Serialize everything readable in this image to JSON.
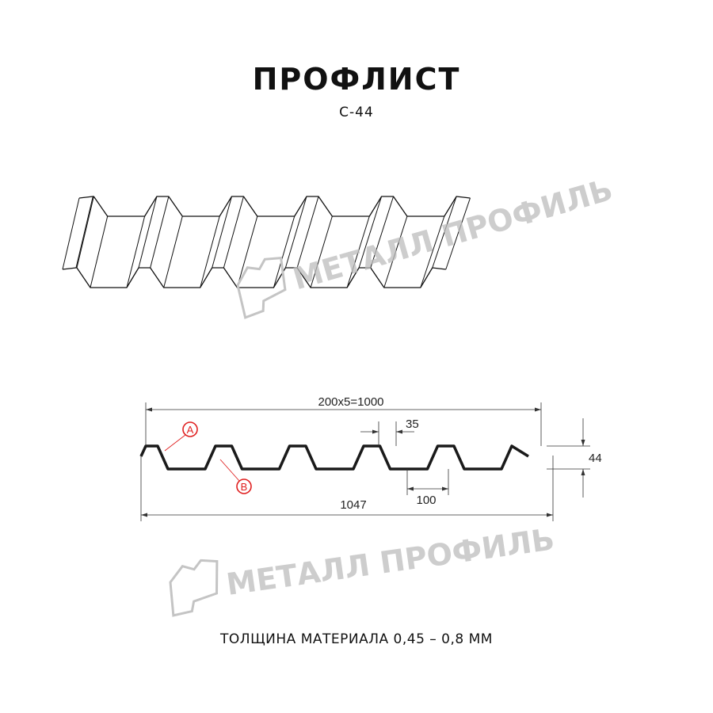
{
  "header": {
    "title": "ПРОФЛИСТ",
    "subtitle": "С-44"
  },
  "watermark": {
    "text": "МЕТАЛЛ ПРОФИЛЬ"
  },
  "drawing": {
    "pitch_label": "200x5=1000",
    "crest_width_label": "35",
    "trough_width_label": "100",
    "total_width_label": "1047",
    "height_label": "44",
    "marker_a": "A",
    "marker_b": "B",
    "marker_color": "#e02020"
  },
  "footer": {
    "thickness": "ТОЛЩИНА МАТЕРИАЛА 0,45 – 0,8 ММ"
  }
}
